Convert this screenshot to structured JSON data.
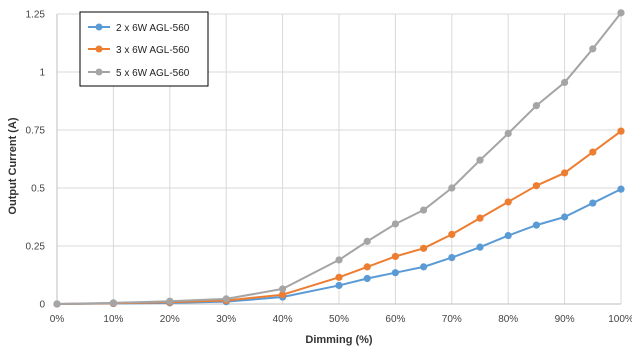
{
  "chart_data": {
    "type": "line",
    "title": "",
    "xlabel": "Dimming (%)",
    "ylabel": "Output Current (A)",
    "x": [
      0,
      10,
      20,
      30,
      40,
      50,
      55,
      60,
      65,
      70,
      75,
      80,
      85,
      90,
      95,
      100
    ],
    "xlim": [
      0,
      100
    ],
    "ylim": [
      0,
      1.25
    ],
    "x_ticks": [
      "0%",
      "10%",
      "20%",
      "30%",
      "40%",
      "50%",
      "60%",
      "70%",
      "80%",
      "90%",
      "100%"
    ],
    "y_ticks": [
      "0",
      "0.25",
      "0.5",
      "0.75",
      "1",
      "1.25"
    ],
    "grid": "vertical and horizontal",
    "legend_position": "top-left",
    "series": [
      {
        "name": "2 x 6W AGL-560",
        "color": "#5b9bd5",
        "values": [
          0,
          0.002,
          0.005,
          0.01,
          0.03,
          0.08,
          0.11,
          0.135,
          0.16,
          0.2,
          0.245,
          0.295,
          0.34,
          0.375,
          0.435,
          0.495
        ]
      },
      {
        "name": "3 x 6W AGL-560",
        "color": "#ed7d31",
        "values": [
          0,
          0.003,
          0.008,
          0.015,
          0.04,
          0.115,
          0.16,
          0.205,
          0.24,
          0.3,
          0.37,
          0.44,
          0.51,
          0.565,
          0.655,
          0.745
        ]
      },
      {
        "name": "5 x 6W AGL-560",
        "color": "#a5a5a5",
        "values": [
          0,
          0.005,
          0.012,
          0.022,
          0.065,
          0.19,
          0.27,
          0.345,
          0.405,
          0.5,
          0.62,
          0.735,
          0.855,
          0.955,
          1.1,
          1.255
        ]
      }
    ]
  }
}
